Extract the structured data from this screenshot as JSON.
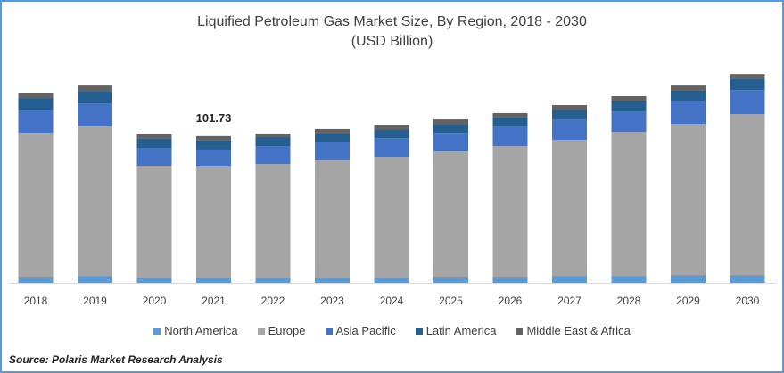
{
  "chart_data": {
    "type": "bar",
    "stacked": true,
    "title": "Liquified Petroleum Gas Market Size, By Region, 2018 - 2030",
    "subtitle": "(USD Billion)",
    "xlabel": "",
    "ylabel": "",
    "categories": [
      "2018",
      "2019",
      "2020",
      "2021",
      "2022",
      "2023",
      "2024",
      "2025",
      "2026",
      "2027",
      "2028",
      "2029",
      "2030"
    ],
    "series": [
      {
        "name": "North America",
        "color": "#5b9bd5",
        "values": [
          4.3,
          4.9,
          3.7,
          3.7,
          3.7,
          3.7,
          3.7,
          4.3,
          4.3,
          4.9,
          4.9,
          5.5,
          5.5
        ]
      },
      {
        "name": "Europe",
        "color": "#a5a5a5",
        "values": [
          99.9,
          103.6,
          77.7,
          77.1,
          78.9,
          81.4,
          83.8,
          86.9,
          90.6,
          94.3,
          99.9,
          104.8,
          111.6
        ]
      },
      {
        "name": "Asia Pacific",
        "color": "#4472c4",
        "values": [
          15.4,
          16.0,
          12.3,
          11.7,
          12.3,
          12.3,
          12.9,
          12.9,
          13.6,
          14.2,
          14.2,
          16.0,
          16.6
        ]
      },
      {
        "name": "Latin America",
        "color": "#255e91",
        "values": [
          8.6,
          8.6,
          6.2,
          6.2,
          6.2,
          6.2,
          6.2,
          6.2,
          6.2,
          6.2,
          7.4,
          7.4,
          8.0
        ]
      },
      {
        "name": "Middle East & Africa",
        "color": "#636363",
        "values": [
          3.7,
          3.7,
          3.1,
          3.1,
          2.5,
          3.1,
          3.1,
          3.1,
          3.1,
          3.7,
          3.1,
          3.1,
          3.1
        ]
      }
    ],
    "annotations": [
      {
        "category": "2021",
        "text": "101.73"
      }
    ],
    "grid": false,
    "legend_position": "bottom"
  },
  "source": "Source: Polaris  Market Research Analysis"
}
